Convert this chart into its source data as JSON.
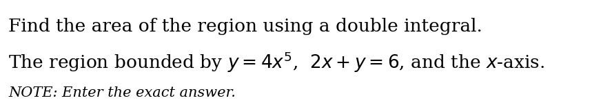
{
  "line1": "Find the area of the region using a double integral.",
  "line2": "The region bounded by $y = 4x^5$,  $2x + y = 6$, and the $x$-axis.",
  "line3": "NOTE: Enter the exact answer.",
  "background_color": "#ffffff",
  "text_color": "#000000",
  "font_size_main": 19,
  "font_size_note": 15,
  "fig_width": 8.88,
  "fig_height": 1.56,
  "dpi": 100
}
